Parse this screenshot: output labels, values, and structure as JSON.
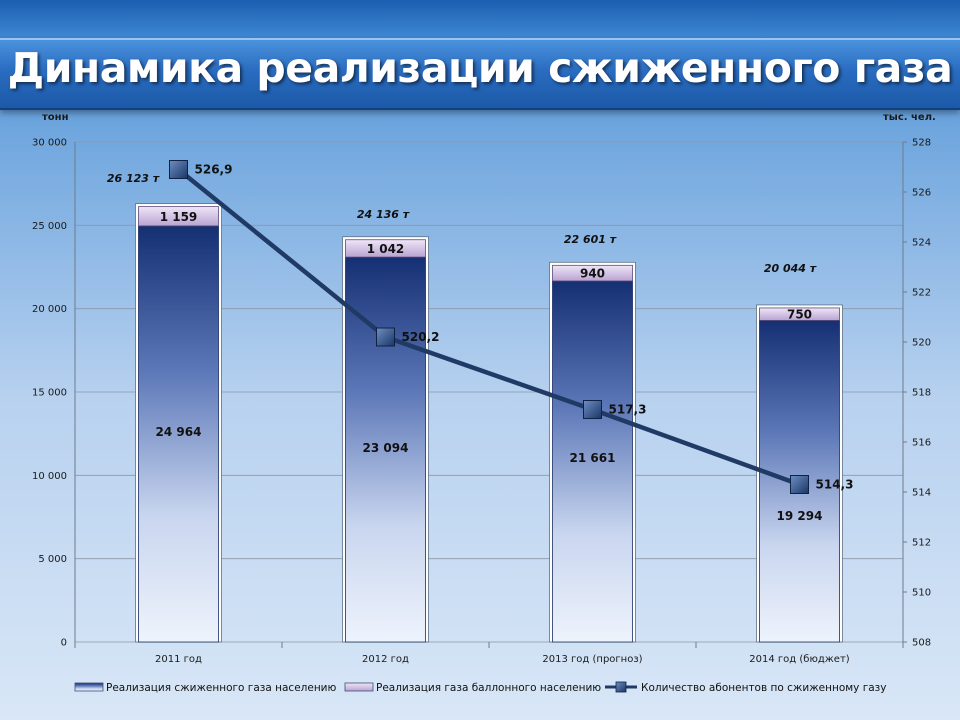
{
  "title": "Динамика реализации сжиженного газа",
  "chart_data": {
    "type": "bar",
    "stacked": true,
    "categories": [
      "2011 год",
      "2012 год",
      "2013 год (прогноз)",
      "2014 год (бюджет)"
    ],
    "series": [
      {
        "name": "Реализация сжиженного газа населению",
        "type": "bar",
        "axis": "left",
        "values": [
          24964,
          23094,
          21661,
          19294
        ],
        "labels": [
          "24 964",
          "23 094",
          "21 661",
          "19 294"
        ],
        "color": "#1e3f8a"
      },
      {
        "name": "Реализация газа баллонного населению",
        "type": "bar",
        "axis": "left",
        "values": [
          1159,
          1042,
          940,
          750
        ],
        "labels": [
          "1 159",
          "1 042",
          "940",
          "750"
        ],
        "color": "#c8b4dd"
      },
      {
        "name": "Количество абонентов по сжиженному газу",
        "type": "line",
        "axis": "right",
        "values": [
          526.9,
          520.2,
          517.3,
          514.3
        ],
        "labels": [
          "526,9",
          "520,2",
          "517,3",
          "514,3"
        ],
        "color": "#1f3a64"
      }
    ],
    "totals": [
      "26 123 т",
      "24 136 т",
      "22 601 т",
      "20 044 т"
    ],
    "ylabel_left": "тонн",
    "ylabel_right": "тыс. чел.",
    "ylim_left": [
      0,
      30000
    ],
    "ylim_right": [
      508,
      528
    ],
    "yticks_left": [
      "0",
      "5 000",
      "10 000",
      "15 000",
      "20 000",
      "25 000",
      "30 000"
    ],
    "yticks_right": [
      "508",
      "510",
      "512",
      "514",
      "516",
      "518",
      "520",
      "522",
      "524",
      "526",
      "528"
    ],
    "grid": true,
    "legend_position": "bottom"
  }
}
